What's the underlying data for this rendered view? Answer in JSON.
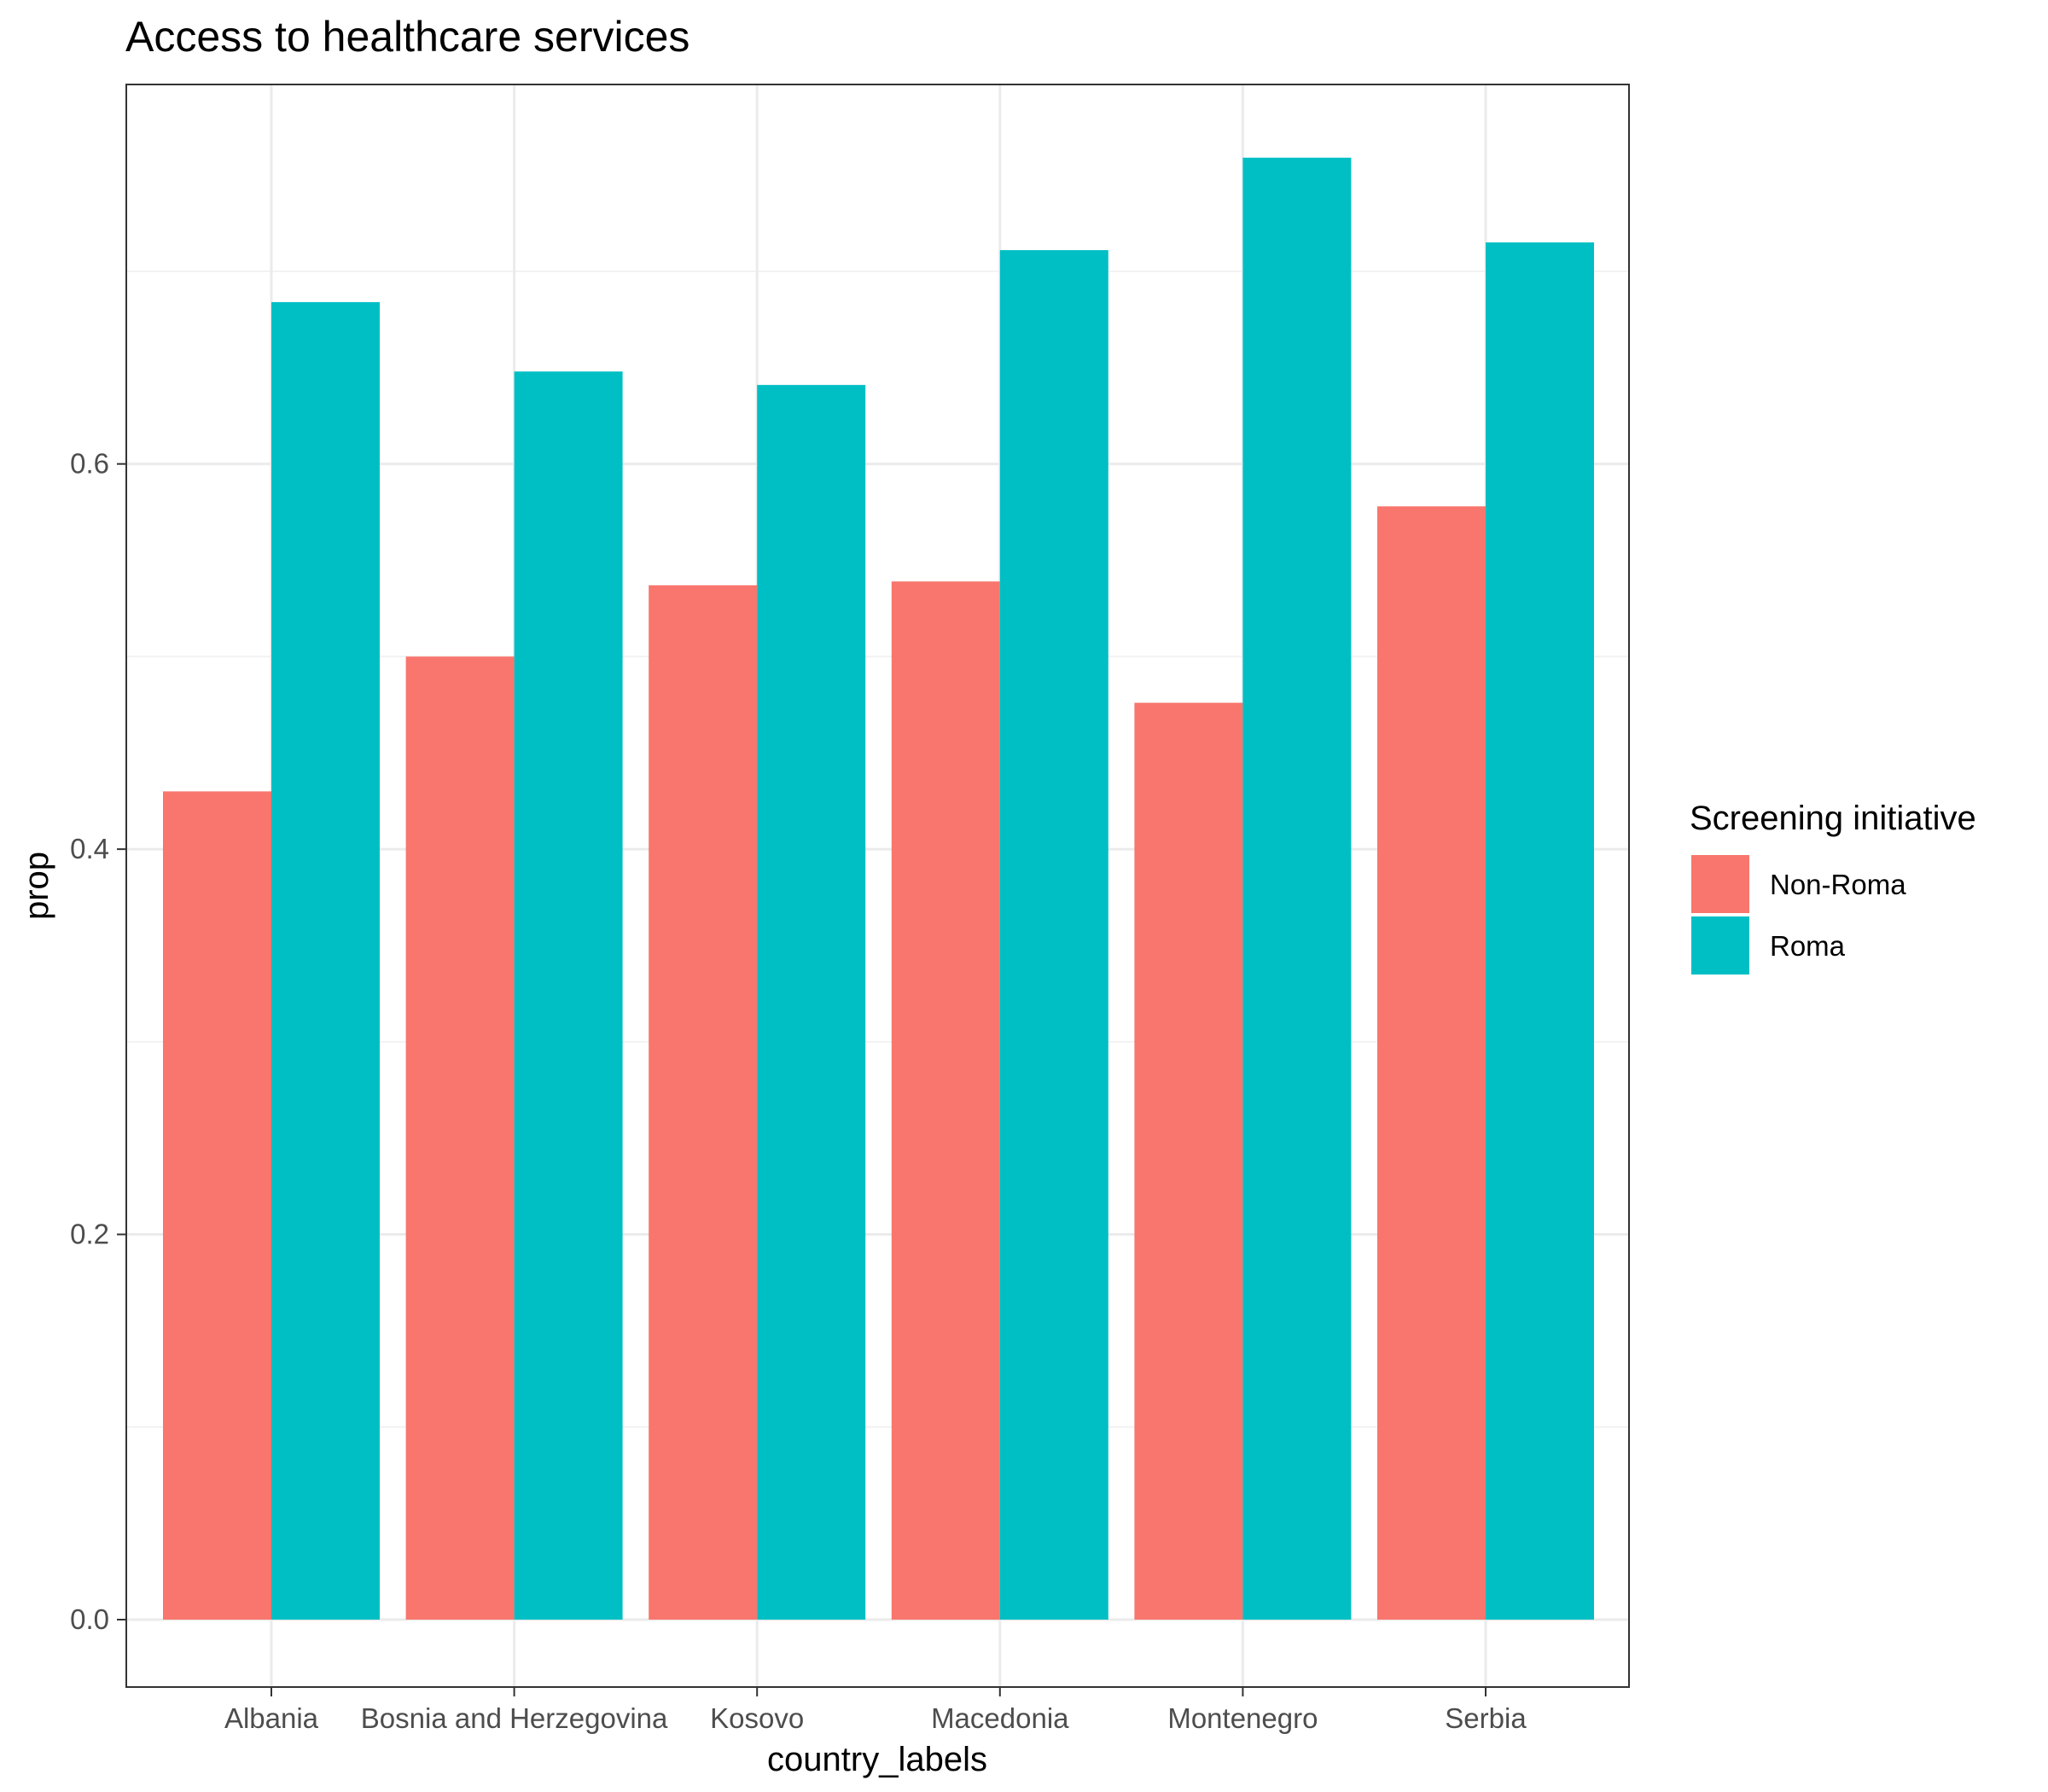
{
  "chart_data": {
    "type": "bar",
    "title": "Access to healthcare services",
    "xlabel": "country_labels",
    "ylabel": "prop",
    "categories": [
      "Albania",
      "Bosnia and Herzegovina",
      "Kosovo",
      "Macedonia",
      "Montenegro",
      "Serbia"
    ],
    "series": [
      {
        "name": "Non-Roma",
        "color": "#F8766D",
        "values": [
          0.43,
          0.5,
          0.537,
          0.539,
          0.476,
          0.578
        ]
      },
      {
        "name": "Roma",
        "color": "#00BFC4",
        "values": [
          0.684,
          0.648,
          0.641,
          0.711,
          0.759,
          0.715
        ]
      }
    ],
    "ylim": [
      -0.035,
      0.797
    ],
    "yticks": [
      0.0,
      0.2,
      0.4,
      0.6
    ],
    "ytick_labels": [
      "0.0",
      "0.2",
      "0.4",
      "0.6"
    ],
    "grid": true,
    "legend": {
      "title": "Screening initiative",
      "position": "right"
    }
  }
}
